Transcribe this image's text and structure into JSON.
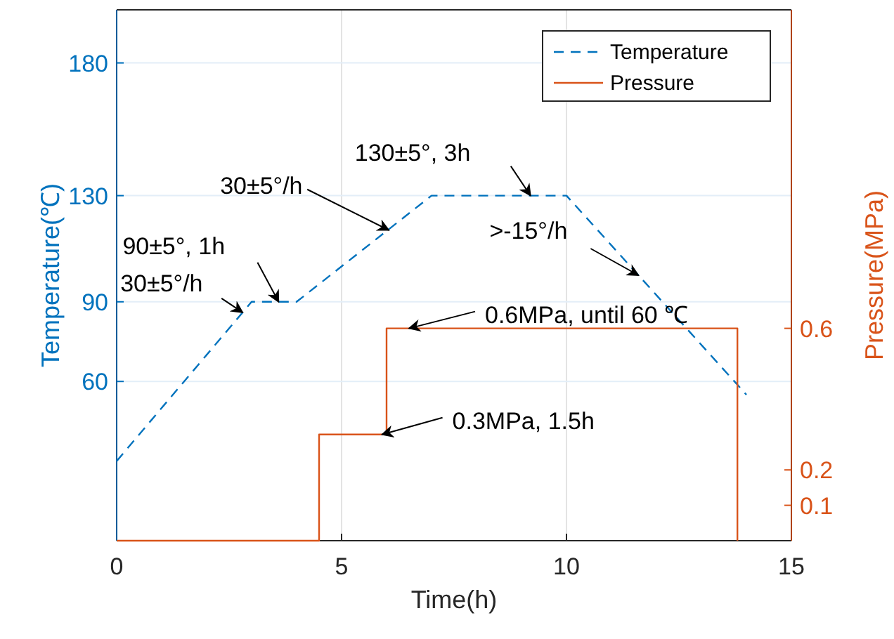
{
  "chart_data": {
    "type": "line",
    "xlabel": "Time(h)",
    "ylabel": "Temperature(℃)",
    "y2label": "Pressure(MPa)",
    "xlim": [
      0,
      15
    ],
    "xticks": [
      0,
      5,
      10,
      15
    ],
    "ylim": [
      0,
      200
    ],
    "yticks": [
      60,
      90,
      130,
      180
    ],
    "y2lim": [
      0,
      1.5
    ],
    "y2ticks": [
      0.1,
      0.2,
      0.6
    ],
    "grid": true,
    "legend": "top right",
    "series": [
      {
        "name": "Temperature",
        "color": "#0072bd",
        "line_style": "dashed",
        "x": [
          0,
          3,
          4,
          7,
          10,
          14
        ],
        "values": [
          30,
          90,
          90,
          130,
          130,
          55
        ]
      },
      {
        "name": "Pressure",
        "color": "#d95319",
        "line_style": "solid",
        "axis": "y2",
        "x": [
          0,
          4.5,
          4.5,
          6,
          6,
          13.8,
          13.8
        ],
        "values": [
          0,
          0,
          0.3,
          0.3,
          0.6,
          0.6,
          0
        ]
      }
    ],
    "annotations": [
      {
        "text": "30±5°/h",
        "x": 2.8,
        "y": 86
      },
      {
        "text": "90±5°, 1h",
        "x": 3.6,
        "y": 90
      },
      {
        "text": "30±5°/h",
        "x": 6.05,
        "y": 117
      },
      {
        "text": "130±5°, 3h",
        "x": 9.2,
        "y": 130
      },
      {
        "text": ">-15°/h",
        "x": 11.6,
        "y": 100
      },
      {
        "text": "0.6MPa, until 60 ℃",
        "x": 6.5,
        "y": 80
      },
      {
        "text": "0.3MPa, 1.5h",
        "x": 5.9,
        "y": 40
      }
    ]
  }
}
